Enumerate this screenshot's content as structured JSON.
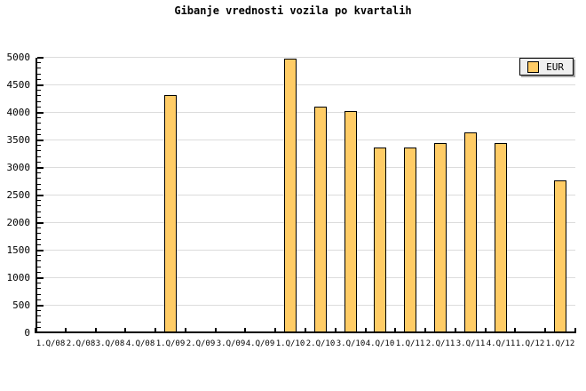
{
  "chart_data": {
    "type": "bar",
    "title": "Gibanje vrednosti vozila po kvartalih",
    "categories": [
      "1.Q/08",
      "2.Q/08",
      "3.Q/08",
      "4.Q/08",
      "1.Q/09",
      "2.Q/09",
      "3.Q/09",
      "4.Q/09",
      "1.Q/10",
      "2.Q/10",
      "3.Q/10",
      "4.Q/10",
      "1.Q/11",
      "2.Q/11",
      "3.Q/11",
      "4.Q/11",
      "1.Q/12",
      "1.Q/12"
    ],
    "series": [
      {
        "name": "EUR",
        "values": [
          null,
          null,
          null,
          null,
          4320,
          null,
          null,
          null,
          4980,
          4120,
          4040,
          3370,
          3370,
          3450,
          3650,
          3450,
          null,
          2780
        ]
      }
    ],
    "xlabel": "",
    "ylabel": "",
    "ylim": [
      0,
      5000
    ],
    "ytick_step": 500,
    "ytick_minor_step": 100,
    "yticks": [
      0,
      500,
      1000,
      1500,
      2000,
      2500,
      3000,
      3500,
      4000,
      4500,
      5000
    ],
    "grid": "horizontal",
    "legend_position": "top-right",
    "colors": {
      "bar_fill": "#FFCC66",
      "bar_border": "#000000",
      "gridline": "#DCDCDC",
      "axis": "#000000",
      "legend_bg": "#EFEFEF",
      "legend_shadow": "#A9A9A9",
      "text": "#000000",
      "background": "#FFFFFF"
    }
  }
}
